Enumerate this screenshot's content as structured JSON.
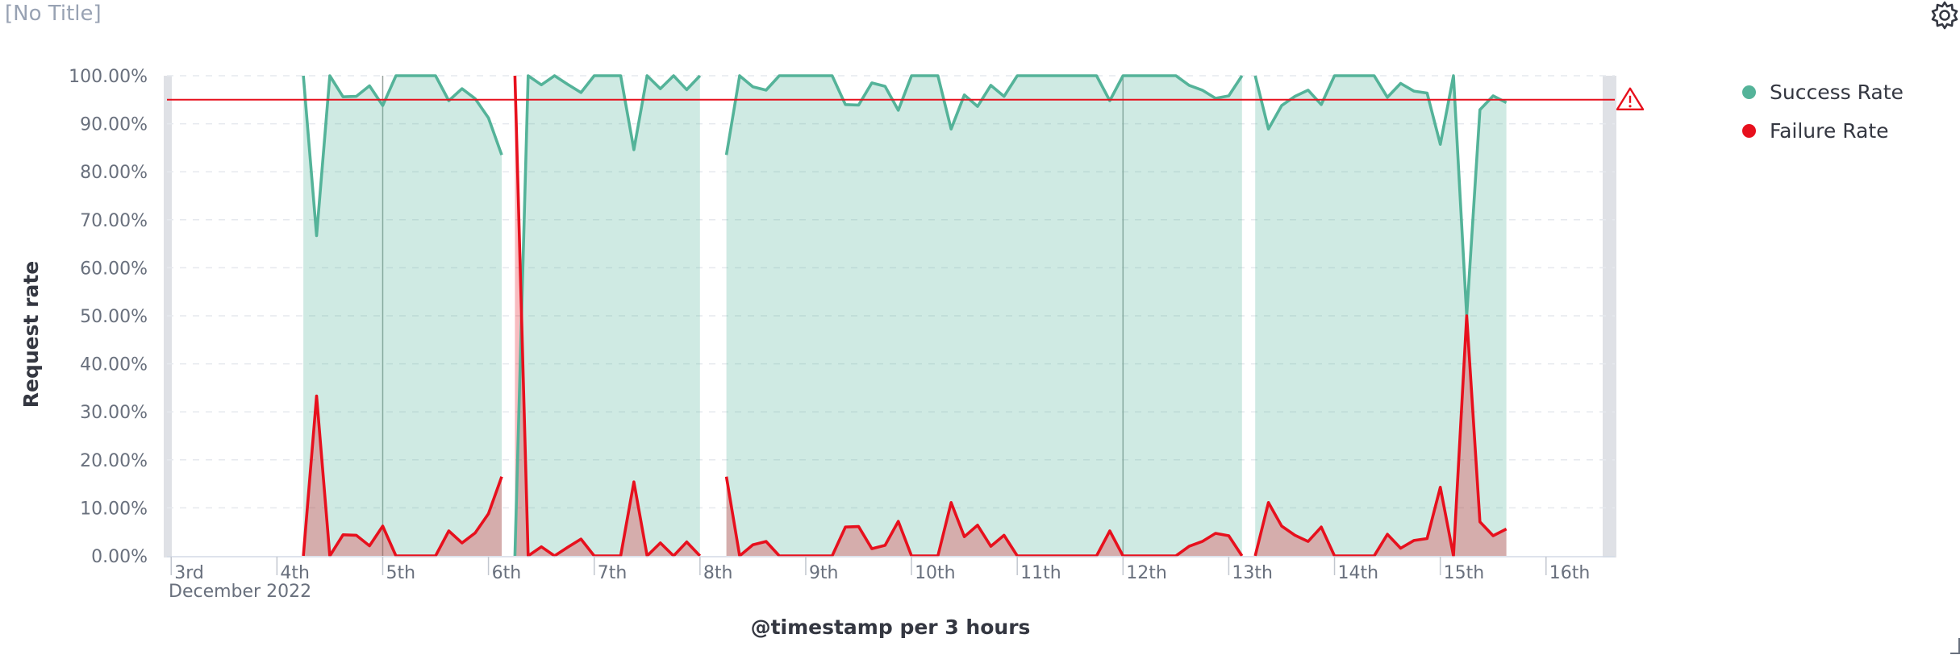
{
  "panel": {
    "title": "[No Title]",
    "settings_icon": "gear-icon"
  },
  "legend": [
    {
      "label": "Success Rate",
      "color": "#54b399"
    },
    {
      "label": "Failure Rate",
      "color": "#e7101d"
    }
  ],
  "chart_data": {
    "type": "area",
    "title": "",
    "xlabel": "@timestamp per 3 hours",
    "ylabel": "Request rate",
    "ylim": [
      0,
      100
    ],
    "y_ticks": [
      "0.00%",
      "10.00%",
      "20.00%",
      "30.00%",
      "40.00%",
      "50.00%",
      "60.00%",
      "70.00%",
      "80.00%",
      "90.00%",
      "100.00%"
    ],
    "x_ticks": [
      "3rd",
      "4th",
      "5th",
      "6th",
      "7th",
      "8th",
      "9th",
      "10th",
      "11th",
      "12th",
      "13th",
      "14th",
      "15th",
      "16th"
    ],
    "x_subtitle": "December 2022",
    "x_range_days": [
      2.96,
      16.65
    ],
    "threshold": {
      "value": 95,
      "color": "#e7101d",
      "marker": "warning-icon"
    },
    "grid": "horizontal-dashed",
    "legend_position": "top-right",
    "series": [
      {
        "name": "Success Rate",
        "color": "#54b399",
        "segments": [
          {
            "start_day": 4.25,
            "step_days": 0.125,
            "values": [
              100,
              66.7,
              100,
              95.6,
              95.7,
              97.9,
              93.8,
              100,
              100,
              100,
              100,
              94.8,
              97.3,
              95.2,
              91.2,
              83.5
            ]
          },
          {
            "start_day": 6.25,
            "step_days": 0.125,
            "values": [
              0,
              100,
              98.1,
              100,
              98.2,
              96.5,
              100,
              100,
              100,
              84.6,
              100,
              97.3,
              100,
              97.1,
              100
            ]
          },
          {
            "start_day": 8.25,
            "step_days": 0.125,
            "values": [
              83.5,
              100,
              97.7,
              97.0,
              100,
              100,
              100,
              100,
              100,
              94.0,
              93.9,
              98.5,
              97.8,
              92.8,
              100,
              100,
              100,
              88.9,
              96.0,
              93.6,
              98.0,
              95.7,
              100,
              100,
              100,
              100,
              100,
              100,
              100,
              94.8,
              100,
              100,
              100,
              100,
              100,
              98.0,
              97.0,
              95.3,
              95.8,
              100
            ]
          },
          {
            "start_day": 13.25,
            "step_days": 0.125,
            "values": [
              100,
              88.9,
              93.8,
              95.7,
              97.0,
              94.0,
              100,
              100,
              100,
              100,
              95.5,
              98.4,
              96.8,
              96.4,
              85.7,
              100,
              50.0,
              92.9,
              95.8,
              94.4
            ]
          }
        ]
      },
      {
        "name": "Failure Rate",
        "color": "#e7101d",
        "segments": [
          {
            "start_day": 4.25,
            "step_days": 0.125,
            "values": [
              0,
              33.3,
              0,
              4.4,
              4.3,
              2.1,
              6.2,
              0,
              0,
              0,
              0,
              5.2,
              2.7,
              4.8,
              8.8,
              16.5
            ]
          },
          {
            "start_day": 6.25,
            "step_days": 0.125,
            "values": [
              100,
              0,
              1.9,
              0,
              1.8,
              3.5,
              0,
              0,
              0,
              15.4,
              0,
              2.7,
              0,
              2.9,
              0
            ]
          },
          {
            "start_day": 8.25,
            "step_days": 0.125,
            "values": [
              16.5,
              0,
              2.3,
              3.0,
              0,
              0,
              0,
              0,
              0,
              6.0,
              6.1,
              1.5,
              2.2,
              7.2,
              0,
              0,
              0,
              11.1,
              4.0,
              6.4,
              2.0,
              4.3,
              0,
              0,
              0,
              0,
              0,
              0,
              0,
              5.2,
              0,
              0,
              0,
              0,
              0,
              2.0,
              3.0,
              4.7,
              4.2,
              0
            ]
          },
          {
            "start_day": 13.25,
            "step_days": 0.125,
            "values": [
              0,
              11.1,
              6.2,
              4.3,
              3.0,
              6.0,
              0,
              0,
              0,
              0,
              4.5,
              1.6,
              3.2,
              3.6,
              14.3,
              0,
              50.0,
              7.1,
              4.2,
              5.6
            ]
          }
        ]
      }
    ]
  }
}
